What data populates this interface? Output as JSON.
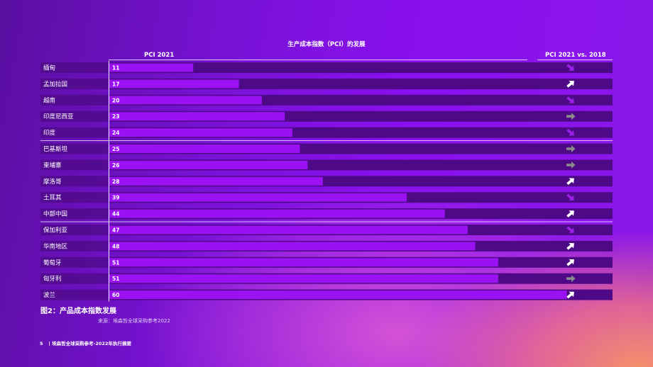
{
  "chart_data": {
    "type": "bar",
    "title": "生产成本指数（PCI）的发展",
    "value_column_label": "PCI 2021",
    "trend_column_label": "PCI 2021 vs. 2018",
    "xlim": [
      0,
      66
    ],
    "categories": [
      "缅甸",
      "孟加拉国",
      "越南",
      "印度尼西亚",
      "印度",
      "巴基斯坦",
      "柬埔寨",
      "摩洛哥",
      "土耳其",
      "中部中国",
      "保加利亚",
      "华南地区",
      "葡萄牙",
      "匈牙利",
      "波兰"
    ],
    "series": [
      {
        "values": [
          11,
          17,
          20,
          23,
          24,
          25,
          26,
          28,
          39,
          44,
          47,
          48,
          51,
          51,
          60
        ]
      }
    ],
    "trend": [
      "down",
      "up",
      "down",
      "flat",
      "down",
      "flat",
      "flat",
      "up",
      "down",
      "up",
      "down",
      "up",
      "up",
      "flat",
      "up"
    ],
    "trend_colors": {
      "up": "#ffffff",
      "down": "#9b20e8",
      "flat": "#8a8a8a"
    },
    "bar_color": "#9a12f2",
    "row_bg": "#4e0a86"
  },
  "caption": "图2：产品成本指数发展",
  "source": "来源：埃森哲全球采购参考2022",
  "footer": {
    "page": "5",
    "text": "| 埃森哲全球采购参考-2022年执行摘要"
  }
}
